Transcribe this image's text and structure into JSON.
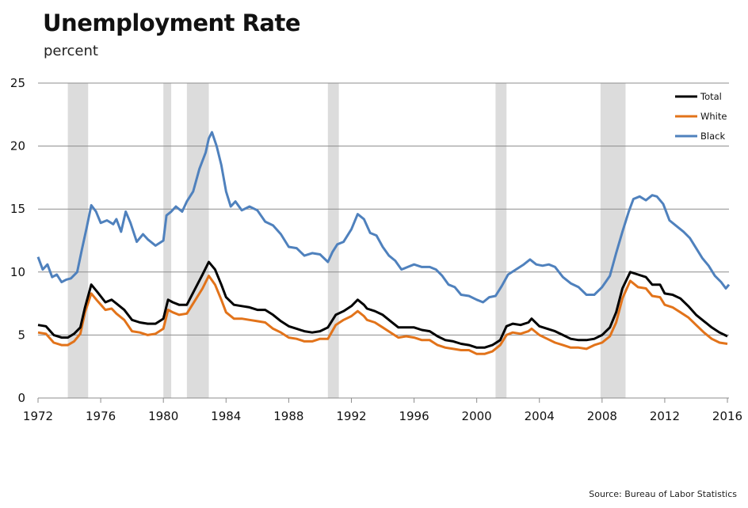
{
  "title": "Unemployment Rate",
  "subtitle": "percent",
  "source": "Source: Bureau of Labor Statistics",
  "chart_data": {
    "type": "line",
    "title": "Unemployment Rate",
    "ylabel": "percent",
    "ylim": [
      0,
      25
    ],
    "yticks": [
      0,
      5,
      10,
      15,
      20,
      25
    ],
    "xlim": [
      1972,
      2016.1
    ],
    "xticks": [
      1972,
      1976,
      1980,
      1984,
      1988,
      1992,
      1996,
      2000,
      2004,
      2008,
      2012,
      2016
    ],
    "grid": "horizontal",
    "legend_position": "top-right",
    "recessions": [
      [
        1973.9,
        1975.2
      ],
      [
        1980.0,
        1980.5
      ],
      [
        1981.5,
        1982.9
      ],
      [
        1990.5,
        1991.2
      ],
      [
        2001.2,
        2001.9
      ],
      [
        2007.9,
        2009.5
      ]
    ],
    "recession_color": "#dcdcdc",
    "series": [
      {
        "name": "Total",
        "color": "#000000",
        "points": [
          [
            1972,
            5.8
          ],
          [
            1972.5,
            5.7
          ],
          [
            1973,
            5.0
          ],
          [
            1973.5,
            4.8
          ],
          [
            1973.9,
            4.8
          ],
          [
            1974.3,
            5.1
          ],
          [
            1974.7,
            5.6
          ],
          [
            1975.0,
            7.2
          ],
          [
            1975.4,
            9.0
          ],
          [
            1975.8,
            8.4
          ],
          [
            1976.3,
            7.6
          ],
          [
            1976.7,
            7.8
          ],
          [
            1977.0,
            7.5
          ],
          [
            1977.5,
            7.0
          ],
          [
            1978,
            6.2
          ],
          [
            1978.5,
            6.0
          ],
          [
            1979,
            5.9
          ],
          [
            1979.5,
            5.9
          ],
          [
            1980,
            6.3
          ],
          [
            1980.3,
            7.8
          ],
          [
            1980.6,
            7.6
          ],
          [
            1981,
            7.4
          ],
          [
            1981.5,
            7.4
          ],
          [
            1982,
            8.6
          ],
          [
            1982.5,
            9.8
          ],
          [
            1982.9,
            10.8
          ],
          [
            1983.3,
            10.2
          ],
          [
            1983.7,
            9.0
          ],
          [
            1984,
            8.0
          ],
          [
            1984.5,
            7.4
          ],
          [
            1985,
            7.3
          ],
          [
            1985.5,
            7.2
          ],
          [
            1986,
            7.0
          ],
          [
            1986.5,
            7.0
          ],
          [
            1987,
            6.6
          ],
          [
            1987.5,
            6.1
          ],
          [
            1988,
            5.7
          ],
          [
            1988.5,
            5.5
          ],
          [
            1989,
            5.3
          ],
          [
            1989.5,
            5.2
          ],
          [
            1990,
            5.3
          ],
          [
            1990.5,
            5.6
          ],
          [
            1991,
            6.6
          ],
          [
            1991.5,
            6.9
          ],
          [
            1992,
            7.3
          ],
          [
            1992.4,
            7.8
          ],
          [
            1992.8,
            7.4
          ],
          [
            1993,
            7.1
          ],
          [
            1993.5,
            6.9
          ],
          [
            1994,
            6.6
          ],
          [
            1994.5,
            6.1
          ],
          [
            1995,
            5.6
          ],
          [
            1995.5,
            5.6
          ],
          [
            1996,
            5.6
          ],
          [
            1996.5,
            5.4
          ],
          [
            1997,
            5.3
          ],
          [
            1997.5,
            4.9
          ],
          [
            1998,
            4.6
          ],
          [
            1998.5,
            4.5
          ],
          [
            1999,
            4.3
          ],
          [
            1999.5,
            4.2
          ],
          [
            2000,
            4.0
          ],
          [
            2000.5,
            4.0
          ],
          [
            2001,
            4.2
          ],
          [
            2001.5,
            4.6
          ],
          [
            2001.9,
            5.7
          ],
          [
            2002.3,
            5.9
          ],
          [
            2002.8,
            5.8
          ],
          [
            2003.3,
            6.0
          ],
          [
            2003.5,
            6.3
          ],
          [
            2004,
            5.7
          ],
          [
            2004.5,
            5.5
          ],
          [
            2005,
            5.3
          ],
          [
            2005.5,
            5.0
          ],
          [
            2006,
            4.7
          ],
          [
            2006.5,
            4.6
          ],
          [
            2007,
            4.6
          ],
          [
            2007.5,
            4.7
          ],
          [
            2008,
            5.0
          ],
          [
            2008.5,
            5.6
          ],
          [
            2008.9,
            6.8
          ],
          [
            2009.3,
            8.7
          ],
          [
            2009.8,
            10.0
          ],
          [
            2010.3,
            9.8
          ],
          [
            2010.8,
            9.6
          ],
          [
            2011.2,
            9.0
          ],
          [
            2011.7,
            9.0
          ],
          [
            2012,
            8.3
          ],
          [
            2012.5,
            8.2
          ],
          [
            2013,
            7.9
          ],
          [
            2013.5,
            7.3
          ],
          [
            2014,
            6.6
          ],
          [
            2014.5,
            6.1
          ],
          [
            2015,
            5.6
          ],
          [
            2015.5,
            5.2
          ],
          [
            2016,
            4.9
          ]
        ]
      },
      {
        "name": "White",
        "color": "#e2731a",
        "points": [
          [
            1972,
            5.2
          ],
          [
            1972.5,
            5.1
          ],
          [
            1973,
            4.4
          ],
          [
            1973.5,
            4.2
          ],
          [
            1973.9,
            4.2
          ],
          [
            1974.3,
            4.5
          ],
          [
            1974.7,
            5.1
          ],
          [
            1975.0,
            6.8
          ],
          [
            1975.4,
            8.3
          ],
          [
            1975.8,
            7.7
          ],
          [
            1976.3,
            7.0
          ],
          [
            1976.7,
            7.1
          ],
          [
            1977.0,
            6.7
          ],
          [
            1977.5,
            6.2
          ],
          [
            1978,
            5.3
          ],
          [
            1978.5,
            5.2
          ],
          [
            1979,
            5.0
          ],
          [
            1979.5,
            5.1
          ],
          [
            1980,
            5.5
          ],
          [
            1980.3,
            7.0
          ],
          [
            1980.6,
            6.8
          ],
          [
            1981,
            6.6
          ],
          [
            1981.5,
            6.7
          ],
          [
            1982,
            7.7
          ],
          [
            1982.5,
            8.7
          ],
          [
            1982.9,
            9.7
          ],
          [
            1983.3,
            9.0
          ],
          [
            1983.7,
            7.8
          ],
          [
            1984,
            6.8
          ],
          [
            1984.5,
            6.3
          ],
          [
            1985,
            6.3
          ],
          [
            1985.5,
            6.2
          ],
          [
            1986,
            6.1
          ],
          [
            1986.5,
            6.0
          ],
          [
            1987,
            5.5
          ],
          [
            1987.5,
            5.2
          ],
          [
            1988,
            4.8
          ],
          [
            1988.5,
            4.7
          ],
          [
            1989,
            4.5
          ],
          [
            1989.5,
            4.5
          ],
          [
            1990,
            4.7
          ],
          [
            1990.5,
            4.7
          ],
          [
            1991,
            5.8
          ],
          [
            1991.5,
            6.2
          ],
          [
            1992,
            6.5
          ],
          [
            1992.4,
            6.9
          ],
          [
            1992.8,
            6.5
          ],
          [
            1993,
            6.2
          ],
          [
            1993.5,
            6.0
          ],
          [
            1994,
            5.6
          ],
          [
            1994.5,
            5.2
          ],
          [
            1995,
            4.8
          ],
          [
            1995.5,
            4.9
          ],
          [
            1996,
            4.8
          ],
          [
            1996.5,
            4.6
          ],
          [
            1997,
            4.6
          ],
          [
            1997.5,
            4.2
          ],
          [
            1998,
            4.0
          ],
          [
            1998.5,
            3.9
          ],
          [
            1999,
            3.8
          ],
          [
            1999.5,
            3.8
          ],
          [
            2000,
            3.5
          ],
          [
            2000.5,
            3.5
          ],
          [
            2001,
            3.7
          ],
          [
            2001.5,
            4.2
          ],
          [
            2001.9,
            5.0
          ],
          [
            2002.3,
            5.2
          ],
          [
            2002.8,
            5.1
          ],
          [
            2003.3,
            5.3
          ],
          [
            2003.5,
            5.5
          ],
          [
            2004,
            5.0
          ],
          [
            2004.5,
            4.7
          ],
          [
            2005,
            4.4
          ],
          [
            2005.5,
            4.2
          ],
          [
            2006,
            4.0
          ],
          [
            2006.5,
            4.0
          ],
          [
            2007,
            3.9
          ],
          [
            2007.5,
            4.2
          ],
          [
            2008,
            4.4
          ],
          [
            2008.5,
            4.9
          ],
          [
            2008.9,
            6.0
          ],
          [
            2009.3,
            7.9
          ],
          [
            2009.8,
            9.3
          ],
          [
            2010.3,
            8.8
          ],
          [
            2010.8,
            8.7
          ],
          [
            2011.2,
            8.1
          ],
          [
            2011.7,
            8.0
          ],
          [
            2012,
            7.4
          ],
          [
            2012.5,
            7.2
          ],
          [
            2013,
            6.8
          ],
          [
            2013.5,
            6.4
          ],
          [
            2014,
            5.8
          ],
          [
            2014.5,
            5.2
          ],
          [
            2015,
            4.7
          ],
          [
            2015.5,
            4.4
          ],
          [
            2016,
            4.3
          ]
        ]
      },
      {
        "name": "Black",
        "color": "#4f81bd",
        "points": [
          [
            1972,
            11.2
          ],
          [
            1972.3,
            10.2
          ],
          [
            1972.6,
            10.6
          ],
          [
            1972.9,
            9.6
          ],
          [
            1973.2,
            9.8
          ],
          [
            1973.5,
            9.2
          ],
          [
            1973.8,
            9.4
          ],
          [
            1974.1,
            9.5
          ],
          [
            1974.5,
            10.0
          ],
          [
            1974.8,
            11.8
          ],
          [
            1975.1,
            13.5
          ],
          [
            1975.4,
            15.3
          ],
          [
            1975.7,
            14.8
          ],
          [
            1976,
            13.9
          ],
          [
            1976.4,
            14.1
          ],
          [
            1976.8,
            13.8
          ],
          [
            1977,
            14.2
          ],
          [
            1977.3,
            13.2
          ],
          [
            1977.6,
            14.8
          ],
          [
            1977.9,
            13.9
          ],
          [
            1978.3,
            12.4
          ],
          [
            1978.7,
            13.0
          ],
          [
            1979,
            12.6
          ],
          [
            1979.5,
            12.1
          ],
          [
            1980,
            12.5
          ],
          [
            1980.2,
            14.5
          ],
          [
            1980.5,
            14.8
          ],
          [
            1980.8,
            15.2
          ],
          [
            1981.2,
            14.8
          ],
          [
            1981.5,
            15.6
          ],
          [
            1981.9,
            16.4
          ],
          [
            1982.3,
            18.2
          ],
          [
            1982.7,
            19.5
          ],
          [
            1982.9,
            20.6
          ],
          [
            1983.1,
            21.1
          ],
          [
            1983.4,
            20.0
          ],
          [
            1983.7,
            18.5
          ],
          [
            1984,
            16.4
          ],
          [
            1984.3,
            15.2
          ],
          [
            1984.6,
            15.6
          ],
          [
            1985,
            14.9
          ],
          [
            1985.5,
            15.2
          ],
          [
            1986,
            14.9
          ],
          [
            1986.5,
            14.0
          ],
          [
            1987,
            13.7
          ],
          [
            1987.5,
            13.0
          ],
          [
            1988,
            12.0
          ],
          [
            1988.5,
            11.9
          ],
          [
            1989,
            11.3
          ],
          [
            1989.5,
            11.5
          ],
          [
            1990,
            11.4
          ],
          [
            1990.5,
            10.8
          ],
          [
            1990.8,
            11.6
          ],
          [
            1991.1,
            12.2
          ],
          [
            1991.5,
            12.4
          ],
          [
            1992,
            13.4
          ],
          [
            1992.4,
            14.6
          ],
          [
            1992.8,
            14.2
          ],
          [
            1993.2,
            13.1
          ],
          [
            1993.6,
            12.9
          ],
          [
            1994,
            12.0
          ],
          [
            1994.4,
            11.3
          ],
          [
            1994.8,
            10.9
          ],
          [
            1995.2,
            10.2
          ],
          [
            1995.6,
            10.4
          ],
          [
            1996,
            10.6
          ],
          [
            1996.5,
            10.4
          ],
          [
            1997,
            10.4
          ],
          [
            1997.4,
            10.2
          ],
          [
            1997.8,
            9.7
          ],
          [
            1998.2,
            9.0
          ],
          [
            1998.6,
            8.8
          ],
          [
            1999,
            8.2
          ],
          [
            1999.5,
            8.1
          ],
          [
            2000,
            7.8
          ],
          [
            2000.4,
            7.6
          ],
          [
            2000.8,
            8.0
          ],
          [
            2001.2,
            8.1
          ],
          [
            2001.6,
            8.9
          ],
          [
            2002,
            9.8
          ],
          [
            2002.5,
            10.2
          ],
          [
            2003,
            10.6
          ],
          [
            2003.4,
            11.0
          ],
          [
            2003.8,
            10.6
          ],
          [
            2004.2,
            10.5
          ],
          [
            2004.6,
            10.6
          ],
          [
            2005,
            10.4
          ],
          [
            2005.5,
            9.6
          ],
          [
            2006,
            9.1
          ],
          [
            2006.5,
            8.8
          ],
          [
            2007,
            8.2
          ],
          [
            2007.5,
            8.2
          ],
          [
            2008,
            8.8
          ],
          [
            2008.5,
            9.7
          ],
          [
            2008.9,
            11.5
          ],
          [
            2009.3,
            13.2
          ],
          [
            2009.7,
            14.8
          ],
          [
            2010,
            15.8
          ],
          [
            2010.4,
            16.0
          ],
          [
            2010.8,
            15.7
          ],
          [
            2011.2,
            16.1
          ],
          [
            2011.5,
            16.0
          ],
          [
            2011.9,
            15.4
          ],
          [
            2012.3,
            14.1
          ],
          [
            2012.7,
            13.7
          ],
          [
            2013.2,
            13.2
          ],
          [
            2013.6,
            12.7
          ],
          [
            2014,
            11.9
          ],
          [
            2014.4,
            11.1
          ],
          [
            2014.8,
            10.5
          ],
          [
            2015.2,
            9.7
          ],
          [
            2015.6,
            9.2
          ],
          [
            2015.9,
            8.7
          ],
          [
            2016.1,
            9.0
          ]
        ]
      }
    ]
  }
}
